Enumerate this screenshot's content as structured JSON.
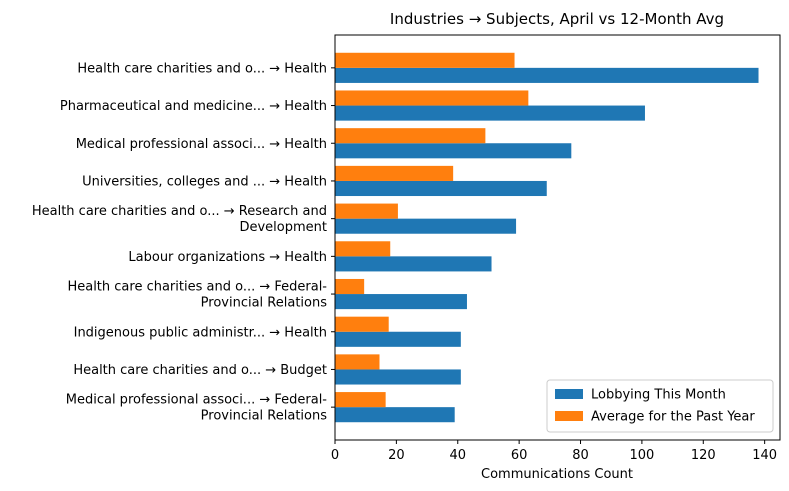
{
  "chart_data": {
    "type": "bar",
    "orientation": "horizontal",
    "title": "Industries → Subjects, April vs 12-Month Avg",
    "xlabel": "Communications Count",
    "ylabel": "",
    "xlim": [
      0,
      145
    ],
    "xticks": [
      0,
      20,
      40,
      60,
      80,
      100,
      120,
      140
    ],
    "categories": [
      [
        "Health care charities and o... → Health"
      ],
      [
        "Pharmaceutical and medicine... → Health"
      ],
      [
        "Medical professional associ... → Health"
      ],
      [
        "Universities, colleges and ... → Health"
      ],
      [
        "Health care charities and o... → Research and",
        "Development"
      ],
      [
        "Labour organizations → Health"
      ],
      [
        "Health care charities and o... → Federal-",
        "Provincial Relations"
      ],
      [
        "Indigenous public administr... → Health"
      ],
      [
        "Health care charities and o... → Budget"
      ],
      [
        "Medical professional associ... → Federal-",
        "Provincial Relations"
      ]
    ],
    "series": [
      {
        "name": "Lobbying This Month",
        "color": "#1f77b4",
        "values": [
          138,
          101,
          77,
          69,
          59,
          51,
          43,
          41,
          41,
          39
        ]
      },
      {
        "name": "Average for the Past Year",
        "color": "#ff7f0e",
        "values": [
          58.5,
          63,
          49,
          38.5,
          20.5,
          18,
          9.5,
          17.5,
          14.5,
          16.5
        ]
      }
    ],
    "legend_position": "lower-right",
    "grid": false
  }
}
